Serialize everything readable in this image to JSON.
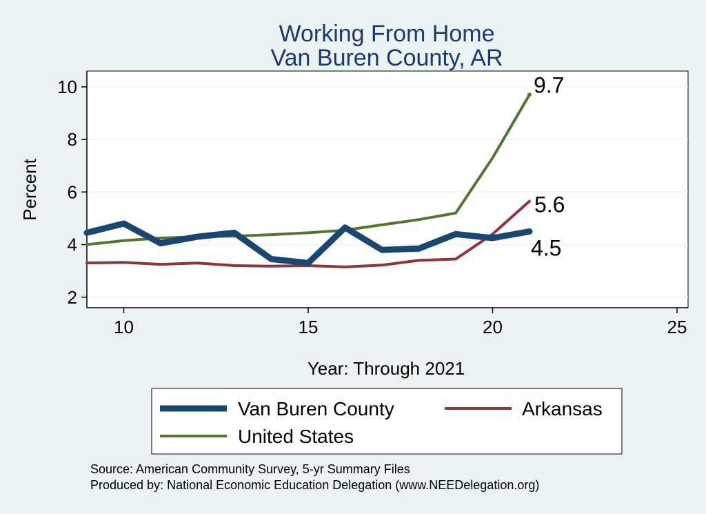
{
  "chart_data": {
    "type": "line",
    "title": [
      "Working From Home",
      "Van Buren County, AR"
    ],
    "xlabel": "Year: Through 2021",
    "ylabel": "Percent",
    "xlim": [
      9,
      25.3
    ],
    "ylim": [
      1.6,
      10.6
    ],
    "xticks": [
      10,
      15,
      20,
      25
    ],
    "yticks": [
      2,
      4,
      6,
      8,
      10
    ],
    "grid": true,
    "legend_position": "bottom",
    "series": [
      {
        "name": "Van Buren County",
        "color": "#1a476f",
        "width": 9,
        "x": [
          9,
          10,
          11,
          12,
          13,
          14,
          15,
          16,
          17,
          18,
          19,
          20,
          21
        ],
        "y": [
          4.45,
          4.8,
          4.05,
          4.3,
          4.45,
          3.45,
          3.3,
          4.65,
          3.8,
          3.85,
          4.4,
          4.25,
          4.5
        ]
      },
      {
        "name": "Arkansas",
        "color": "#90353b",
        "width": 4,
        "x": [
          9,
          10,
          11,
          12,
          13,
          14,
          15,
          16,
          17,
          18,
          19,
          20,
          21
        ],
        "y": [
          3.3,
          3.32,
          3.25,
          3.3,
          3.2,
          3.18,
          3.2,
          3.15,
          3.22,
          3.4,
          3.45,
          4.4,
          5.65
        ]
      },
      {
        "name": "United States",
        "color": "#55752f",
        "width": 4,
        "x": [
          9,
          10,
          11,
          12,
          13,
          14,
          15,
          16,
          17,
          18,
          19,
          20,
          21
        ],
        "y": [
          4.0,
          4.15,
          4.25,
          4.3,
          4.32,
          4.38,
          4.45,
          4.55,
          4.75,
          4.95,
          5.2,
          7.3,
          9.7
        ]
      }
    ],
    "end_labels": [
      {
        "text": "9.7",
        "series": "United States"
      },
      {
        "text": "5.6",
        "series": "Arkansas"
      },
      {
        "text": "4.5",
        "series": "Van Buren County"
      }
    ],
    "footer": [
      "Source: American Community Survey, 5-yr Summary Files",
      "Produced by: National Economic Education Delegation (www.NEEDelegation.org)"
    ]
  }
}
